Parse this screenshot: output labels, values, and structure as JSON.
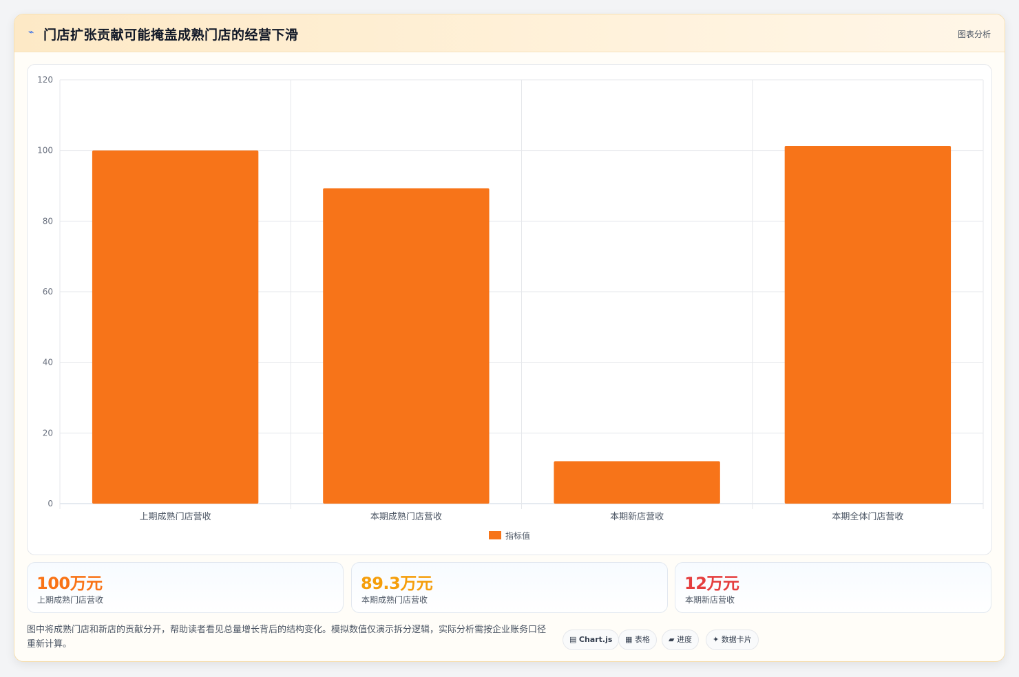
{
  "header": {
    "icon": "chart-line-icon",
    "title": "门店扩张贡献可能掩盖成熟门店的经营下滑",
    "badge": "图表分析"
  },
  "chart_data": {
    "type": "bar",
    "categories": [
      "上期成熟门店营收",
      "本期成熟门店营收",
      "本期新店营收",
      "本期全体门店营收"
    ],
    "series": [
      {
        "name": "指标值",
        "values": [
          100,
          89.3,
          12,
          101.3
        ],
        "color": "#f77419"
      }
    ],
    "ylim": [
      0,
      120
    ],
    "yticks": [
      0,
      20,
      40,
      60,
      80,
      100,
      120
    ],
    "grid": true,
    "legend": "bottom"
  },
  "stats": [
    {
      "value": "100万元",
      "label": "上期成熟门店营收",
      "color": "#f97316"
    },
    {
      "value": "89.3万元",
      "label": "本期成熟门店营收",
      "color": "#f59e0b"
    },
    {
      "value": "12万元",
      "label": "本期新店营收",
      "color": "#e53e3e"
    }
  ],
  "footnote": "图中将成熟门店和新店的贡献分开，帮助读者看见总量增长背后的结构变化。模拟数值仅演示拆分逻辑，实际分析需按企业账务口径重新计算。",
  "tags": [
    {
      "icon": "▤",
      "label": "Chart.js",
      "icon_name": "chart-icon"
    },
    {
      "icon": "▦",
      "label": "表格",
      "icon_name": "table-icon"
    },
    {
      "icon": "▰",
      "label": "进度",
      "icon_name": "progress-icon"
    },
    {
      "icon": "✦",
      "label": "数据卡片",
      "icon_name": "sparkle-icon"
    }
  ]
}
